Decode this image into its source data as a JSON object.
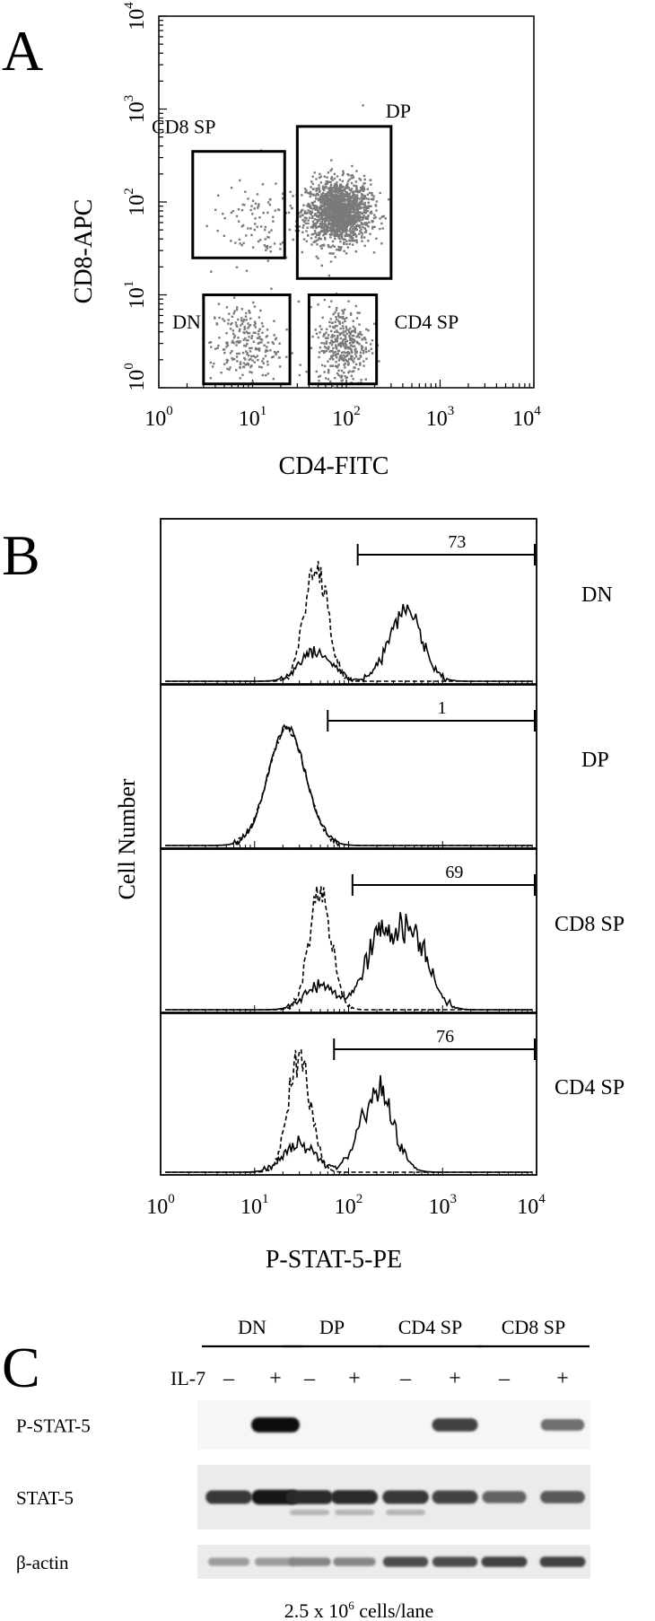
{
  "panel_a": {
    "letter": "A",
    "xlabel": "CD4-FITC",
    "ylabel": "CD8-APC",
    "x_ticks": [
      {
        "base": "10",
        "exp": "0"
      },
      {
        "base": "10",
        "exp": "1"
      },
      {
        "base": "10",
        "exp": "2"
      },
      {
        "base": "10",
        "exp": "3"
      },
      {
        "base": "10",
        "exp": "4"
      }
    ],
    "y_ticks": [
      {
        "base": "10",
        "exp": "0"
      },
      {
        "base": "10",
        "exp": "1"
      },
      {
        "base": "10",
        "exp": "2"
      },
      {
        "base": "10",
        "exp": "3"
      },
      {
        "base": "10",
        "exp": "4"
      }
    ],
    "gates": [
      {
        "label": "CD8 SP",
        "x": [
          2.3,
          22
        ],
        "y": [
          25,
          350
        ],
        "label_pos": "top-left"
      },
      {
        "label": "DP",
        "x": [
          30,
          300
        ],
        "y": [
          15,
          650
        ],
        "label_pos": "top-right"
      },
      {
        "label": "DN",
        "x": [
          3,
          25
        ],
        "y": [
          1.1,
          10
        ],
        "label_pos": "left"
      },
      {
        "label": "CD4 SP",
        "x": [
          40,
          210
        ],
        "y": [
          1.1,
          10
        ],
        "label_pos": "right"
      }
    ],
    "chart_data": {
      "type": "scatter",
      "x_scale": "log",
      "y_scale": "log",
      "xlim": [
        1,
        10000
      ],
      "ylim": [
        1,
        10000
      ],
      "populations": [
        {
          "gate": "DP",
          "center": [
            80,
            80
          ]
        },
        {
          "gate": "CD4 SP",
          "center": [
            90,
            3
          ]
        },
        {
          "gate": "DN",
          "center": [
            8,
            3
          ]
        },
        {
          "gate": "CD8 SP",
          "center": [
            10,
            60
          ]
        }
      ]
    }
  },
  "panel_b": {
    "letter": "B",
    "ylabel": "Cell Number",
    "xlabel": "P-STAT-5-PE",
    "x_ticks": [
      {
        "base": "10",
        "exp": "0"
      },
      {
        "base": "10",
        "exp": "1"
      },
      {
        "base": "10",
        "exp": "2"
      },
      {
        "base": "10",
        "exp": "3"
      },
      {
        "base": "10",
        "exp": "4"
      }
    ],
    "chart_data": {
      "type": "line",
      "x_scale": "log",
      "xlim": [
        1,
        10000
      ],
      "histograms": [
        {
          "label": "DN",
          "percent": "73",
          "gate": [
            125,
            10000
          ],
          "dashed_peak": 45,
          "solid_peaks": [
            [
              45,
              0.25
            ],
            [
              400,
              0.6
            ]
          ]
        },
        {
          "label": "DP",
          "percent": "1",
          "gate": [
            60,
            10000
          ],
          "dashed_peak": 22,
          "solid_peaks": [
            [
              22,
              1.0
            ]
          ]
        },
        {
          "label": "CD8 SP",
          "percent": "69",
          "gate": [
            110,
            10000
          ],
          "dashed_peak": 50,
          "solid_peaks": [
            [
              50,
              0.2
            ],
            [
              220,
              0.6
            ],
            [
              500,
              0.6
            ]
          ]
        },
        {
          "label": "CD4 SP",
          "percent": "76",
          "gate": [
            70,
            10000
          ],
          "dashed_peak": 30,
          "solid_peaks": [
            [
              30,
              0.25
            ],
            [
              200,
              0.7
            ]
          ]
        }
      ]
    }
  },
  "panel_c": {
    "letter": "C",
    "groups": [
      "DN",
      "DP",
      "CD4 SP",
      "CD8 SP"
    ],
    "treatment_label": "IL-7",
    "lane_signs": [
      "–",
      "+",
      "–",
      "+",
      "–",
      "+",
      "–",
      "+"
    ],
    "blots": [
      {
        "label": "P-STAT-5",
        "intensities": [
          0,
          1.0,
          0,
          0,
          0,
          0.75,
          0,
          0.55
        ]
      },
      {
        "label": "STAT-5",
        "intensities": [
          0.8,
          0.95,
          0.85,
          0.85,
          0.8,
          0.75,
          0.6,
          0.65
        ]
      },
      {
        "label": "β-actin",
        "intensities": [
          0.35,
          0.35,
          0.45,
          0.45,
          0.7,
          0.7,
          0.75,
          0.75
        ]
      }
    ],
    "footer_pre": "2.5 x 10",
    "footer_exp": "6",
    "footer_post": " cells/lane"
  }
}
